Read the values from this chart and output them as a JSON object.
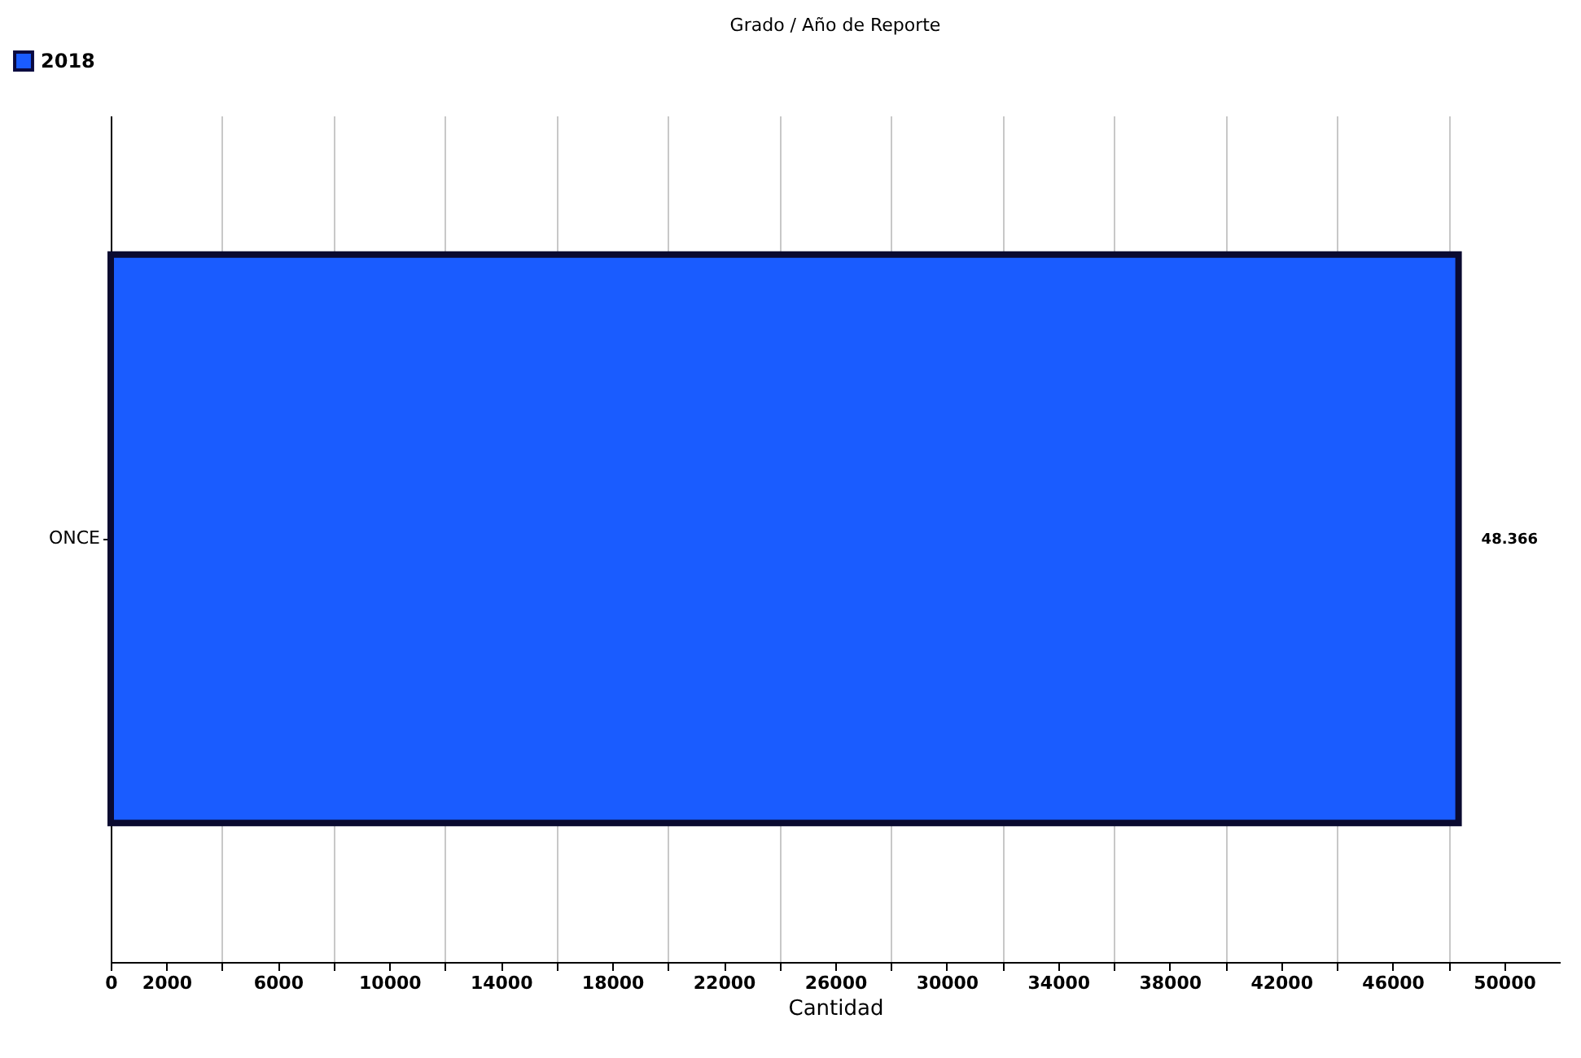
{
  "chart_data": {
    "type": "bar",
    "orientation": "horizontal",
    "title": "Grado / Año de Reporte",
    "xlabel": "Cantidad",
    "categories": [
      "ONCE"
    ],
    "series": [
      {
        "name": "2018",
        "color": "#1a5cff",
        "values": [
          48366
        ],
        "value_labels": [
          "48.366"
        ]
      }
    ],
    "xlim": [
      0,
      52000
    ],
    "xticks": [
      0,
      2000,
      {
        "value": 4000,
        "label": null
      },
      6000,
      {
        "value": 8000,
        "label": null
      },
      10000,
      {
        "value": 12000,
        "label": null
      },
      14000,
      {
        "value": 16000,
        "label": null
      },
      18000,
      {
        "value": 20000,
        "label": null
      },
      22000,
      {
        "value": 24000,
        "label": null
      },
      26000,
      {
        "value": 28000,
        "label": null
      },
      30000,
      {
        "value": 32000,
        "label": null
      },
      34000,
      {
        "value": 36000,
        "label": null
      },
      38000,
      {
        "value": 40000,
        "label": null
      },
      42000,
      {
        "value": 44000,
        "label": null
      },
      46000,
      {
        "value": 48000,
        "label": null
      },
      50000
    ],
    "grid": "x",
    "legend": "top left"
  }
}
